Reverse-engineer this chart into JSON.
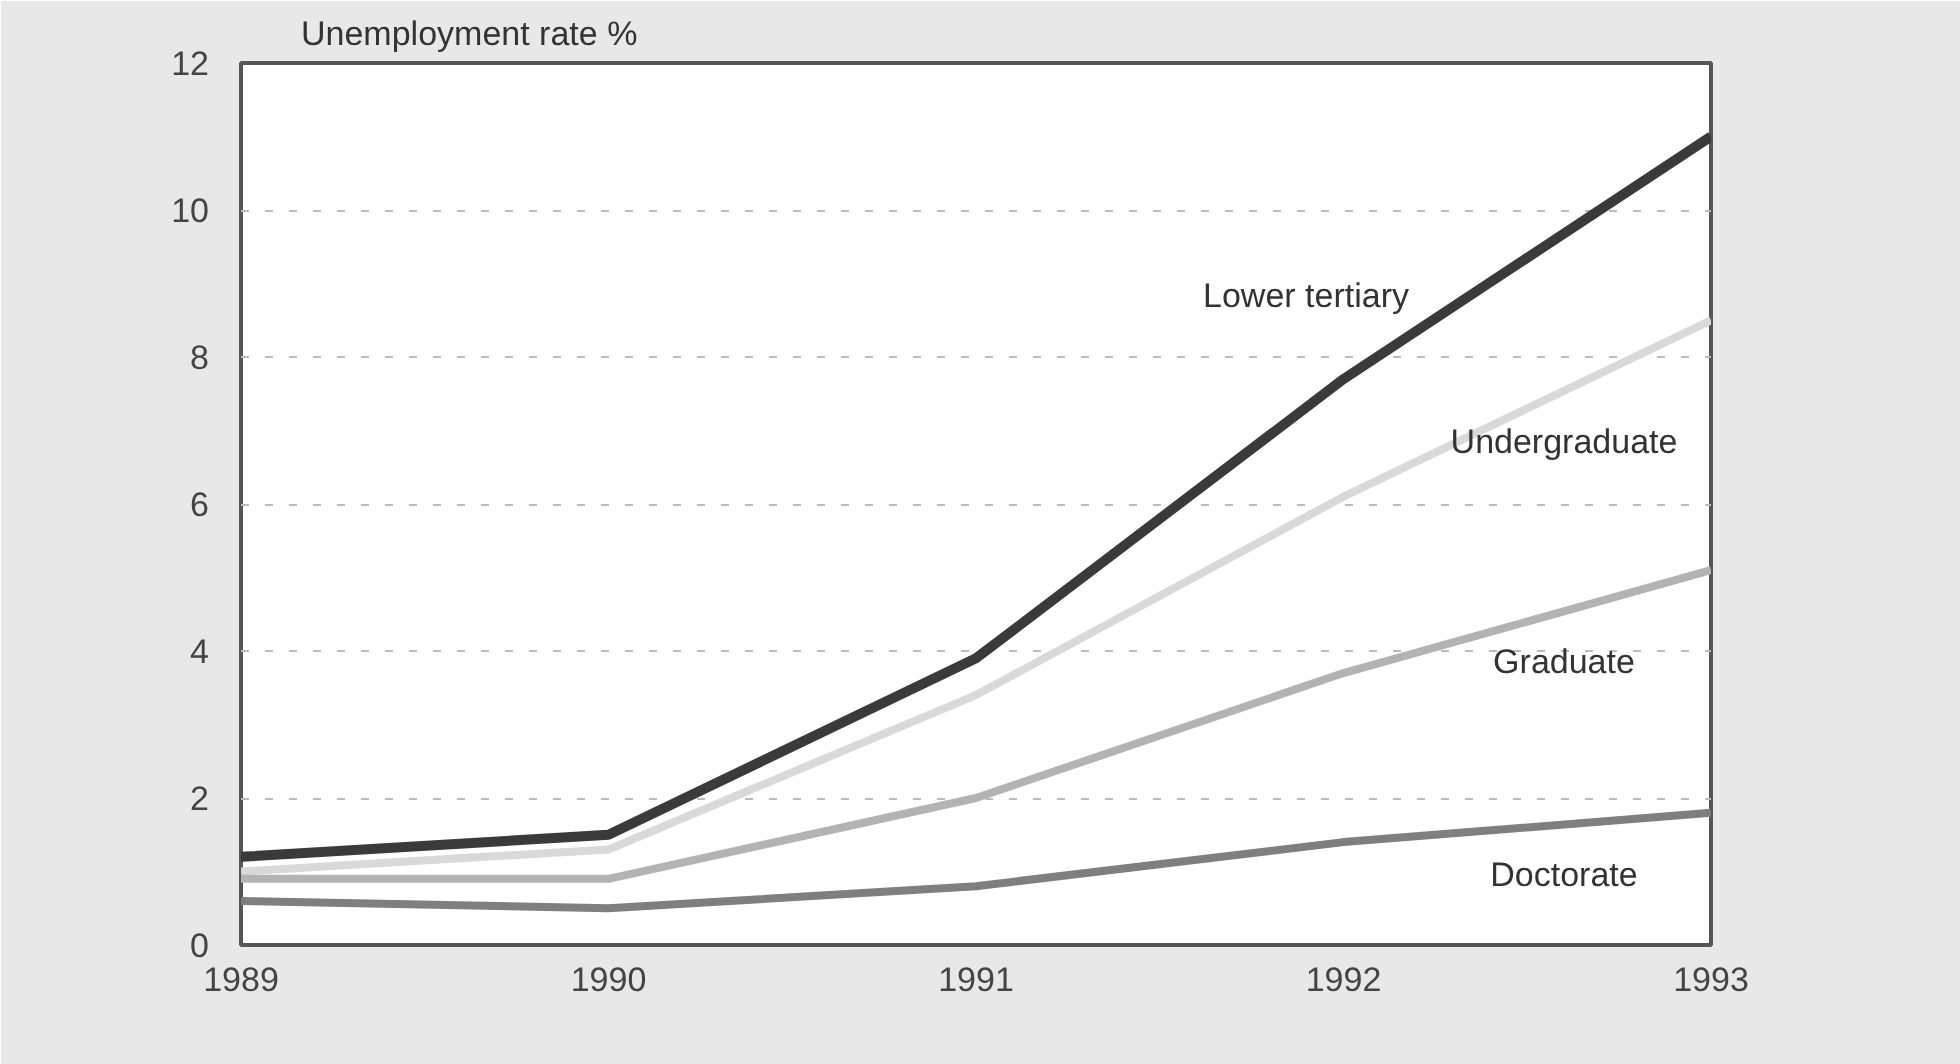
{
  "chart_data": {
    "type": "line",
    "ylabel": "Unemployment rate %",
    "x": [
      1989,
      1990,
      1991,
      1992,
      1993
    ],
    "xlim": [
      1989,
      1993
    ],
    "xticks": [
      1989,
      1990,
      1991,
      1992,
      1993
    ],
    "ylim": [
      0,
      12
    ],
    "yticks": [
      0,
      2,
      4,
      6,
      8,
      10,
      12
    ],
    "grid": "y",
    "series": [
      {
        "name": "Lower tertiary",
        "color": "#3a3a3a",
        "values": [
          1.2,
          1.5,
          3.9,
          7.7,
          11.0
        ]
      },
      {
        "name": "Undergraduate",
        "color": "#d9d9d9",
        "values": [
          1.0,
          1.3,
          3.4,
          6.1,
          8.5
        ]
      },
      {
        "name": "Graduate",
        "color": "#b3b3b3",
        "values": [
          0.9,
          0.9,
          2.0,
          3.7,
          5.1
        ]
      },
      {
        "name": "Doctorate",
        "color": "#7f7f7f",
        "values": [
          0.6,
          0.5,
          0.8,
          1.4,
          1.8
        ]
      }
    ]
  }
}
